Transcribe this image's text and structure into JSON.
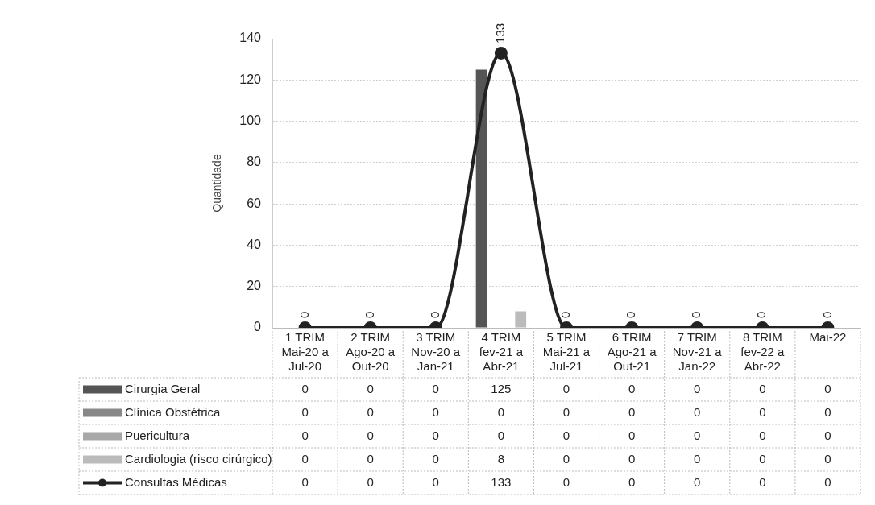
{
  "chart_data": {
    "type": "bar",
    "ylabel": "Quantidade",
    "categories": [
      "1 TRIM\nMai-20 a\nJul-20",
      "2 TRIM\nAgo-20 a\nOut-20",
      "3 TRIM\nNov-20 a\nJan-21",
      "4 TRIM\nfev-21 a\nAbr-21",
      "5 TRIM\nMai-21 a\nJul-21",
      "6 TRIM\nAgo-21 a\nOut-21",
      "7 TRIM\nNov-21 a\nJan-22",
      "8 TRIM\nfev-22 a\nAbr-22",
      "Mai-22"
    ],
    "series": [
      {
        "name": "Cirurgia Geral",
        "color": "#555555",
        "values": [
          0,
          0,
          0,
          125,
          0,
          0,
          0,
          0,
          0
        ]
      },
      {
        "name": "Clínica Obstétrica",
        "color": "#888888",
        "values": [
          0,
          0,
          0,
          0,
          0,
          0,
          0,
          0,
          0
        ]
      },
      {
        "name": "Puericultura",
        "color": "#a8a8a8",
        "values": [
          0,
          0,
          0,
          0,
          0,
          0,
          0,
          0,
          0
        ]
      },
      {
        "name": "Cardiologia (risco cirúrgico)",
        "color": "#bbbbbb",
        "values": [
          0,
          0,
          0,
          8,
          0,
          0,
          0,
          0,
          0
        ]
      },
      {
        "name": "Consultas Médicas",
        "type": "line",
        "color": "#222222",
        "values": [
          0,
          0,
          0,
          133,
          0,
          0,
          0,
          0,
          0
        ]
      }
    ],
    "ylim": [
      0,
      140
    ],
    "yticks": [
      0,
      20,
      40,
      60,
      80,
      100,
      120,
      140
    ],
    "annotations": [
      {
        "text": "0",
        "x": "1 TRIM\nMai-20 a\nJul-20",
        "y": 0
      },
      {
        "text": "0",
        "x": "2 TRIM\nAgo-20 a\nOut-20",
        "y": 0
      },
      {
        "text": "0",
        "x": "3 TRIM\nNov-20 a\nJan-21",
        "y": 0
      },
      {
        "text": "133",
        "x": "4 TRIM\nfev-21 a\nAbr-21",
        "y": 133
      },
      {
        "text": "0",
        "x": "5 TRIM\nMai-21 a\nJul-21",
        "y": 0
      },
      {
        "text": "0",
        "x": "6 TRIM\nAgo-21 a\nOut-21",
        "y": 0
      },
      {
        "text": "0",
        "x": "7 TRIM\nNov-21 a\nJan-22",
        "y": 0
      },
      {
        "text": "0",
        "x": "8 TRIM\nfev-22 a\nAbr-22",
        "y": 0
      },
      {
        "text": "0",
        "x": "Mai-22",
        "y": 0
      }
    ],
    "grid": "y",
    "legend": "bottom",
    "data_labels": true,
    "marker": "circle"
  }
}
